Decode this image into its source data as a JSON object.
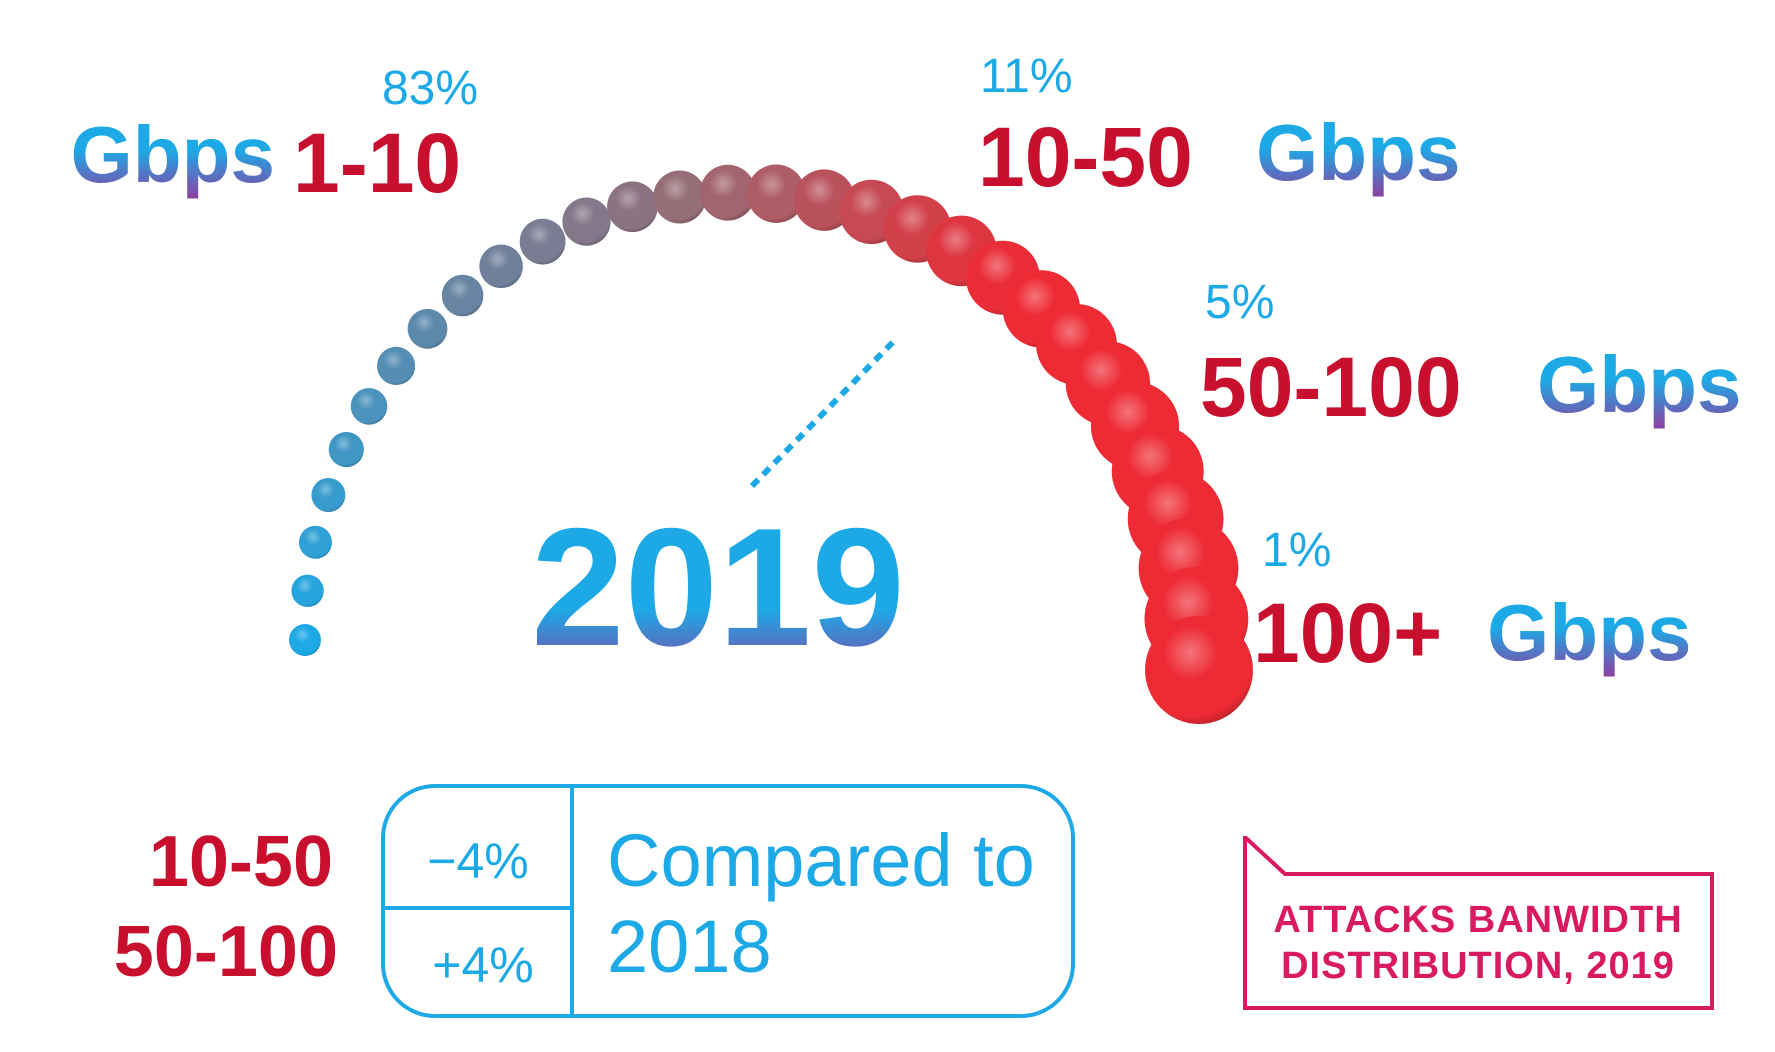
{
  "chart_data": {
    "type": "gauge",
    "title": "ATTACKS BANWIDTH DISTRIBUTION, 2019",
    "year": "2019",
    "unit": "Gbps",
    "categories": [
      "1-10",
      "10-50",
      "50-100",
      "100+"
    ],
    "values": [
      83,
      11,
      5,
      1
    ],
    "value_labels": [
      "83%",
      "11%",
      "5%",
      "1%"
    ],
    "comparison": {
      "heading_line1": "Compared to",
      "heading_line2": "2018",
      "rows": [
        {
          "range": "10-50",
          "delta": "−4%"
        },
        {
          "range": "50-100",
          "delta": "+4%"
        }
      ]
    }
  },
  "colors": {
    "red": "#c8102e",
    "cyan": "#1ca9e6",
    "purple": "#7d3c98",
    "caption": "#d81b60",
    "ball_red": "#ee2a35"
  }
}
